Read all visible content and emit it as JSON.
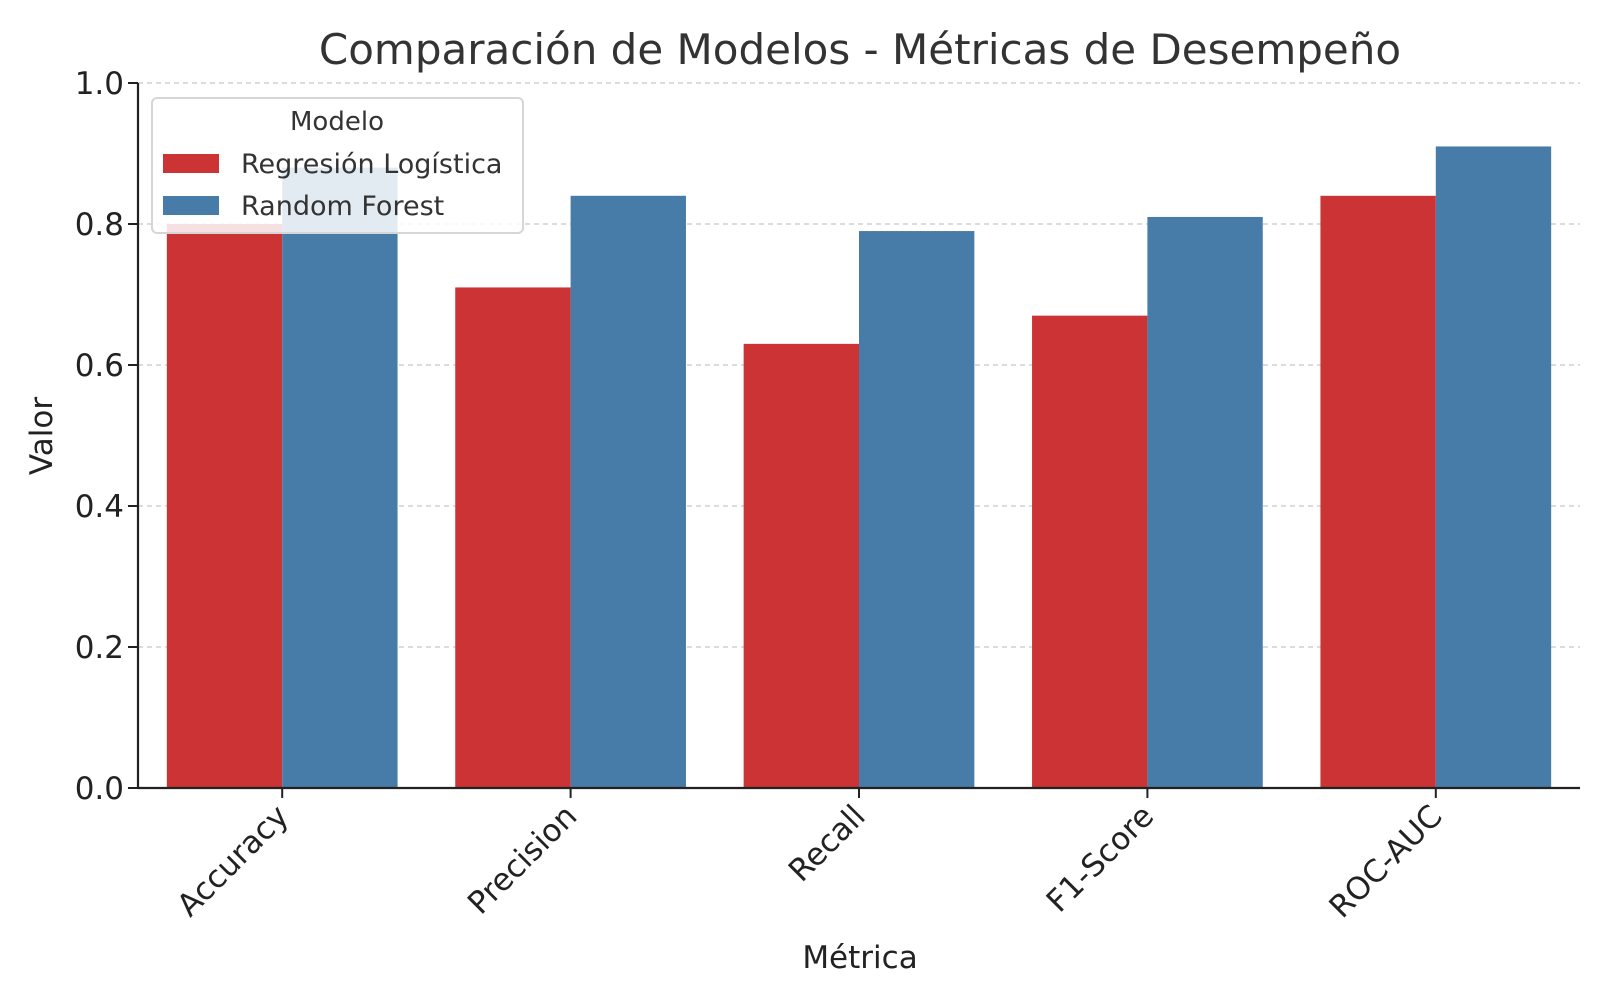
{
  "chart_data": {
    "type": "bar",
    "title": "Comparación de Modelos - Métricas de Desempeño",
    "xlabel": "Métrica",
    "ylabel": "Valor",
    "ylim": [
      0,
      1.0
    ],
    "yticks": [
      "0.0",
      "0.2",
      "0.4",
      "0.6",
      "0.8",
      "1.0"
    ],
    "categories": [
      "Accuracy",
      "Precision",
      "Recall",
      "F1-Score",
      "ROC-AUC"
    ],
    "legend_title": "Modelo",
    "legend_position": "top-left",
    "grid": "horizontal dashed",
    "series": [
      {
        "name": "Regresión Logística",
        "color": "#cb3335",
        "values": [
          0.8,
          0.71,
          0.63,
          0.67,
          0.84
        ]
      },
      {
        "name": "Random Forest",
        "color": "#477ca8",
        "values": [
          0.88,
          0.84,
          0.79,
          0.81,
          0.91
        ]
      }
    ]
  }
}
